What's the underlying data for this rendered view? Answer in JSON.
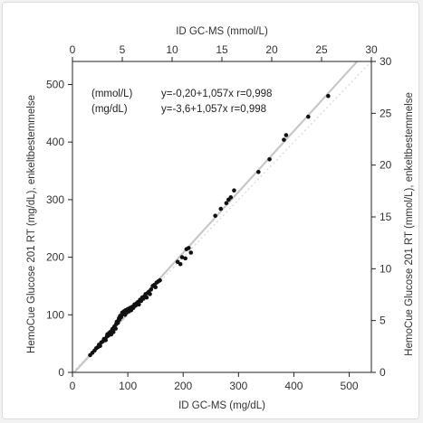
{
  "chart_data": {
    "type": "scatter",
    "xlabel": "ID GC-MS (mg/dL)",
    "ylabel": "HemoCue Glucose 201 RT (mg/dL), enkeltbestemmelse",
    "x2label": "ID GC-MS (mmol/L)",
    "y2label": "HemoCue Glucose 201 RT (mmol/L), enkeltbestemmelse",
    "xlim": [
      0,
      540
    ],
    "ylim": [
      0,
      540
    ],
    "x2lim": [
      0,
      30
    ],
    "y2lim": [
      0,
      30
    ],
    "xticks": [
      "0",
      "100",
      "200",
      "300",
      "400",
      "500"
    ],
    "yticks": [
      "0",
      "100",
      "200",
      "300",
      "400",
      "500"
    ],
    "x2ticks": [
      "0",
      "5",
      "10",
      "15",
      "20",
      "25",
      "30"
    ],
    "y2ticks": [
      "0",
      "5",
      "10",
      "15",
      "20",
      "25",
      "30"
    ],
    "annotations": [
      {
        "unit": "(mmol/L)",
        "equation": "y=-0,20+1,057x r=0,998"
      },
      {
        "unit": "(mg/dL)",
        "equation": "y=-3,6+1,057x r=0,998"
      }
    ],
    "regression_line": {
      "intercept": -3.6,
      "slope": 1.057
    },
    "identity_line": {
      "intercept": 0,
      "slope": 1
    },
    "colors": {
      "points": "#111111",
      "regression": "#c8c8c8",
      "identity": "#d6d6d6",
      "axis": "#222222"
    },
    "points": [
      [
        32,
        30
      ],
      [
        36,
        34
      ],
      [
        40,
        38
      ],
      [
        43,
        42
      ],
      [
        46,
        44
      ],
      [
        48,
        48
      ],
      [
        50,
        46
      ],
      [
        52,
        52
      ],
      [
        55,
        54
      ],
      [
        57,
        58
      ],
      [
        60,
        56
      ],
      [
        62,
        62
      ],
      [
        63,
        66
      ],
      [
        65,
        64
      ],
      [
        66,
        68
      ],
      [
        68,
        70
      ],
      [
        70,
        66
      ],
      [
        71,
        72
      ],
      [
        72,
        75
      ],
      [
        74,
        70
      ],
      [
        75,
        78
      ],
      [
        76,
        80
      ],
      [
        78,
        76
      ],
      [
        79,
        84
      ],
      [
        80,
        88
      ],
      [
        82,
        86
      ],
      [
        83,
        90
      ],
      [
        84,
        94
      ],
      [
        85,
        92
      ],
      [
        86,
        98
      ],
      [
        88,
        96
      ],
      [
        89,
        100
      ],
      [
        90,
        104
      ],
      [
        92,
        102
      ],
      [
        93,
        106
      ],
      [
        95,
        100
      ],
      [
        96,
        108
      ],
      [
        98,
        104
      ],
      [
        100,
        110
      ],
      [
        102,
        106
      ],
      [
        104,
        112
      ],
      [
        106,
        108
      ],
      [
        108,
        114
      ],
      [
        110,
        112
      ],
      [
        112,
        118
      ],
      [
        114,
        116
      ],
      [
        116,
        120
      ],
      [
        118,
        122
      ],
      [
        120,
        118
      ],
      [
        122,
        126
      ],
      [
        124,
        124
      ],
      [
        126,
        130
      ],
      [
        128,
        128
      ],
      [
        130,
        132
      ],
      [
        132,
        136
      ],
      [
        134,
        130
      ],
      [
        136,
        138
      ],
      [
        138,
        140
      ],
      [
        140,
        136
      ],
      [
        142,
        144
      ],
      [
        145,
        150
      ],
      [
        148,
        152
      ],
      [
        150,
        148
      ],
      [
        152,
        156
      ],
      [
        155,
        158
      ],
      [
        158,
        160
      ],
      [
        190,
        192
      ],
      [
        195,
        188
      ],
      [
        198,
        200
      ],
      [
        204,
        198
      ],
      [
        206,
        214
      ],
      [
        210,
        216
      ],
      [
        214,
        208
      ],
      [
        258,
        272
      ],
      [
        268,
        284
      ],
      [
        278,
        294
      ],
      [
        282,
        300
      ],
      [
        286,
        304
      ],
      [
        292,
        316
      ],
      [
        336,
        348
      ],
      [
        356,
        370
      ],
      [
        382,
        404
      ],
      [
        386,
        412
      ],
      [
        426,
        444
      ],
      [
        462,
        480
      ]
    ]
  }
}
